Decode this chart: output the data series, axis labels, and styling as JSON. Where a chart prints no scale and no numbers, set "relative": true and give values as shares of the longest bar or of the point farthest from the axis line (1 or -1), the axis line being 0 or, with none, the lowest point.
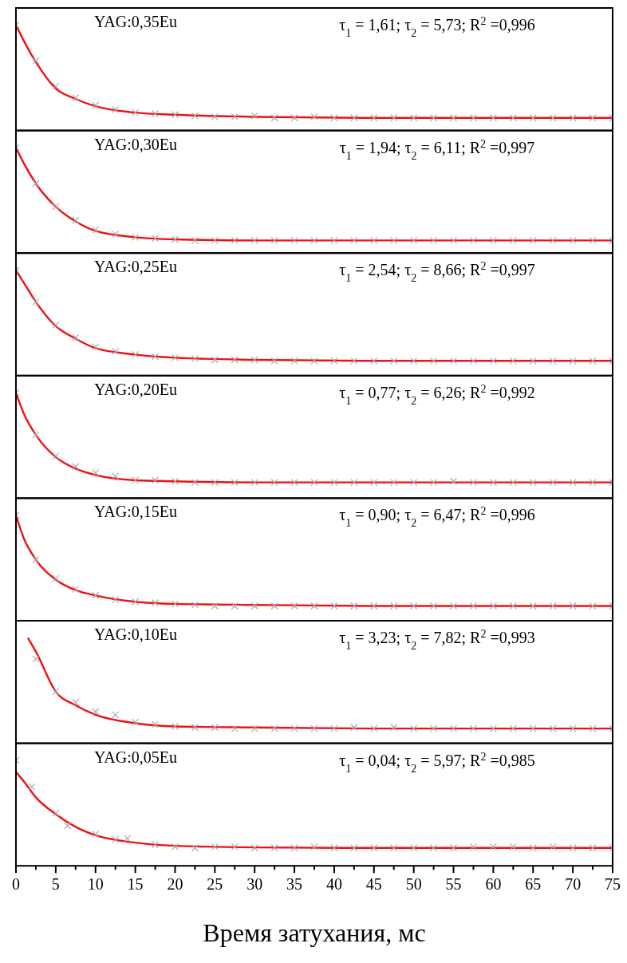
{
  "chart_data": [
    {
      "type": "line",
      "title": "YAG:0,35Eu",
      "annotations": [
        "τ$_{1}$ = 1,61; τ$_{2}$ = 5,73; R$^{2}$ =0,996"
      ],
      "relative": true,
      "xlim": [
        0,
        75
      ],
      "tick_labels": false,
      "series": [
        {
          "type": "scatter",
          "marker": "cross",
          "color": "#a8a8b8",
          "x": [
            0,
            2.5,
            5,
            7.5,
            10,
            12.5,
            15,
            17.5,
            20,
            22.5,
            25,
            27.5,
            30,
            32.5,
            35,
            37.5,
            40,
            42.5,
            45,
            47.5,
            50,
            52.5,
            55,
            57.5,
            60,
            62.5,
            65,
            67.5,
            70,
            72.5,
            75
          ],
          "values": [
            1,
            0.66,
            0.42,
            0.31,
            0.24,
            0.2,
            0.17,
            0.16,
            0.15,
            0.14,
            0.13,
            0.13,
            0.14,
            0.12,
            0.12,
            0.13,
            0.12,
            0.12,
            0.12,
            0.12,
            0.12,
            0.12,
            0.12,
            0.12,
            0.12,
            0.12,
            0.12,
            0.12,
            0.12,
            0.12,
            0.12
          ]
        },
        {
          "type": "line",
          "color": "#ee1111",
          "x": [
            0,
            1,
            2.5,
            5,
            7.5,
            10,
            15,
            20,
            30,
            45,
            75
          ],
          "values": [
            1,
            0.85,
            0.65,
            0.4,
            0.3,
            0.23,
            0.17,
            0.15,
            0.13,
            0.12,
            0.12
          ]
        }
      ]
    },
    {
      "type": "line",
      "title": "YAG:0,30Eu",
      "annotations": [
        "τ$_{1}$ = 1,94; τ$_{2}$ = 6,11; R$^{2}$ =0,997"
      ],
      "relative": true,
      "xlim": [
        0,
        75
      ],
      "tick_labels": false,
      "series": [
        {
          "type": "scatter",
          "marker": "cross",
          "color": "#a8a8b8",
          "x": [
            0,
            2.5,
            5,
            7.5,
            10,
            12.5,
            15,
            17.5,
            20,
            22.5,
            25,
            27.5,
            30,
            32.5,
            35,
            37.5,
            40,
            42.5,
            45,
            47.5,
            50,
            52.5,
            55,
            57.5,
            60,
            62.5,
            65,
            67.5,
            70,
            72.5,
            75
          ],
          "values": [
            1,
            0.66,
            0.44,
            0.31,
            0.22,
            0.18,
            0.15,
            0.14,
            0.13,
            0.12,
            0.12,
            0.12,
            0.12,
            0.12,
            0.12,
            0.12,
            0.12,
            0.12,
            0.12,
            0.12,
            0.12,
            0.12,
            0.12,
            0.12,
            0.12,
            0.12,
            0.12,
            0.12,
            0.12,
            0.12,
            0.12
          ]
        },
        {
          "type": "line",
          "color": "#ee1111",
          "x": [
            0,
            1,
            2.5,
            5,
            7.5,
            10,
            15,
            20,
            30,
            45,
            75
          ],
          "values": [
            1,
            0.85,
            0.66,
            0.44,
            0.3,
            0.21,
            0.15,
            0.13,
            0.12,
            0.12,
            0.12
          ]
        }
      ]
    },
    {
      "type": "line",
      "title": "YAG:0,25Eu",
      "annotations": [
        "τ$_{1}$ = 2,54; τ$_{2}$ = 8,66; R$^{2}$ =0,997"
      ],
      "relative": true,
      "xlim": [
        0,
        75
      ],
      "tick_labels": false,
      "series": [
        {
          "type": "scatter",
          "marker": "cross",
          "color": "#a8a8b8",
          "x": [
            0,
            2.5,
            5,
            7.5,
            10,
            12.5,
            15,
            17.5,
            20,
            22.5,
            25,
            27.5,
            30,
            32.5,
            35,
            37.5,
            40,
            42.5,
            45,
            47.5,
            50,
            52.5,
            55,
            57.5,
            60,
            62.5,
            65,
            67.5,
            70,
            72.5,
            75
          ],
          "values": [
            1,
            0.7,
            0.48,
            0.36,
            0.27,
            0.23,
            0.2,
            0.18,
            0.17,
            0.16,
            0.15,
            0.15,
            0.15,
            0.14,
            0.14,
            0.14,
            0.14,
            0.14,
            0.14,
            0.14,
            0.14,
            0.14,
            0.14,
            0.14,
            0.14,
            0.14,
            0.14,
            0.14,
            0.14,
            0.14,
            0.14
          ]
        },
        {
          "type": "line",
          "color": "#ee1111",
          "x": [
            0,
            1,
            2.5,
            5,
            7.5,
            10,
            15,
            20,
            30,
            45,
            75
          ],
          "values": [
            1,
            0.88,
            0.7,
            0.47,
            0.35,
            0.26,
            0.2,
            0.17,
            0.15,
            0.14,
            0.14
          ]
        }
      ]
    },
    {
      "type": "line",
      "title": "YAG:0,20Eu",
      "annotations": [
        "τ$_{1}$ = 0,77; τ$_{2}$ = 6,26; R$^{2}$ =0,992"
      ],
      "relative": true,
      "xlim": [
        0,
        75
      ],
      "tick_labels": false,
      "series": [
        {
          "type": "scatter",
          "marker": "cross",
          "color": "#a8a8b8",
          "x": [
            0,
            2.5,
            5,
            7.5,
            10,
            12.5,
            15,
            17.5,
            20,
            22.5,
            25,
            27.5,
            30,
            32.5,
            35,
            37.5,
            40,
            42.5,
            45,
            47.5,
            50,
            52.5,
            55,
            57.5,
            60,
            62.5,
            65,
            67.5,
            70,
            72.5,
            75
          ],
          "values": [
            1,
            0.6,
            0.4,
            0.3,
            0.24,
            0.21,
            0.17,
            0.17,
            0.16,
            0.15,
            0.15,
            0.15,
            0.15,
            0.15,
            0.15,
            0.15,
            0.15,
            0.15,
            0.15,
            0.15,
            0.15,
            0.15,
            0.16,
            0.15,
            0.15,
            0.15,
            0.15,
            0.15,
            0.15,
            0.15,
            0.15
          ]
        },
        {
          "type": "line",
          "color": "#ee1111",
          "x": [
            0,
            1,
            2.5,
            5,
            7.5,
            10,
            15,
            20,
            30,
            45,
            75
          ],
          "values": [
            1,
            0.8,
            0.6,
            0.39,
            0.28,
            0.22,
            0.17,
            0.16,
            0.15,
            0.15,
            0.15
          ]
        }
      ]
    },
    {
      "type": "line",
      "title": "YAG:0,15Eu",
      "annotations": [
        "τ$_{1}$ = 0,90; τ$_{2}$ = 6,47; R$^{2}$ =0,996"
      ],
      "relative": true,
      "xlim": [
        0,
        75
      ],
      "tick_labels": false,
      "series": [
        {
          "type": "scatter",
          "marker": "cross",
          "color": "#a8a8b8",
          "x": [
            0,
            2.5,
            5,
            7.5,
            10,
            12.5,
            15,
            17.5,
            20,
            22.5,
            25,
            27.5,
            30,
            32.5,
            35,
            37.5,
            40,
            42.5,
            45,
            47.5,
            50,
            52.5,
            55,
            57.5,
            60,
            62.5,
            65,
            67.5,
            70,
            72.5,
            75
          ],
          "values": [
            1,
            0.58,
            0.4,
            0.3,
            0.24,
            0.2,
            0.18,
            0.17,
            0.16,
            0.15,
            0.14,
            0.14,
            0.14,
            0.14,
            0.14,
            0.14,
            0.14,
            0.14,
            0.14,
            0.14,
            0.14,
            0.14,
            0.14,
            0.14,
            0.14,
            0.14,
            0.14,
            0.14,
            0.14,
            0.14,
            0.14
          ]
        },
        {
          "type": "line",
          "color": "#ee1111",
          "x": [
            0,
            1,
            2.5,
            5,
            7.5,
            10,
            15,
            20,
            30,
            45,
            75
          ],
          "values": [
            1,
            0.78,
            0.58,
            0.39,
            0.29,
            0.24,
            0.18,
            0.16,
            0.15,
            0.14,
            0.14
          ]
        }
      ]
    },
    {
      "type": "line",
      "title": "YAG:0,10Eu",
      "annotations": [
        "τ$_{1}$ = 3,23; τ$_{2}$ = 7,82; R$^{2}$ =0,993"
      ],
      "relative": true,
      "xlim": [
        0,
        75
      ],
      "tick_labels": false,
      "series": [
        {
          "type": "scatter",
          "marker": "cross",
          "color": "#a8a8b8",
          "x": [
            2.5,
            5,
            7.5,
            10,
            12.5,
            15,
            17.5,
            20,
            22.5,
            25,
            27.5,
            30,
            32.5,
            35,
            37.5,
            40,
            42.5,
            45,
            47.5,
            50,
            52.5,
            55,
            57.5,
            60,
            62.5,
            65,
            67.5,
            70,
            72.5,
            75
          ],
          "values": [
            0.8,
            0.49,
            0.39,
            0.3,
            0.27,
            0.2,
            0.18,
            0.16,
            0.15,
            0.15,
            0.14,
            0.14,
            0.14,
            0.14,
            0.14,
            0.14,
            0.15,
            0.14,
            0.15,
            0.14,
            0.14,
            0.14,
            0.14,
            0.14,
            0.14,
            0.14,
            0.14,
            0.14,
            0.14,
            0.14
          ]
        },
        {
          "type": "line",
          "color": "#ee1111",
          "x": [
            1.5,
            2.5,
            5,
            7.5,
            10,
            15,
            20,
            30,
            45,
            75
          ],
          "values": [
            1,
            0.87,
            0.49,
            0.36,
            0.27,
            0.19,
            0.16,
            0.15,
            0.14,
            0.14
          ]
        }
      ]
    },
    {
      "type": "line",
      "title": "YAG:0,05Eu",
      "annotations": [
        "τ$_{1}$ = 0,04; τ$_{2}$ = 5,97; R$^{2}$ =0,985"
      ],
      "xlabel": "Время затухания, мс",
      "relative": true,
      "xlim": [
        0,
        75
      ],
      "tick_labels": "x",
      "xticks": [
        0,
        {
          "value": 2.5,
          "label": null
        },
        5,
        {
          "value": 7.5,
          "label": null
        },
        10,
        {
          "value": 12.5,
          "label": null
        },
        15,
        {
          "value": 17.5,
          "label": null
        },
        20,
        {
          "value": 22.5,
          "label": null
        },
        25,
        {
          "value": 27.5,
          "label": null
        },
        30,
        {
          "value": 32.5,
          "label": null
        },
        35,
        {
          "value": 37.5,
          "label": null
        },
        40,
        {
          "value": 42.5,
          "label": null
        },
        45,
        {
          "value": 47.5,
          "label": null
        },
        50,
        {
          "value": 52.5,
          "label": null
        },
        55,
        {
          "value": 57.5,
          "label": null
        },
        60,
        {
          "value": 62.5,
          "label": null
        },
        65,
        {
          "value": 67.5,
          "label": null
        },
        70,
        {
          "value": 72.5,
          "label": null
        },
        75
      ],
      "series": [
        {
          "type": "scatter",
          "marker": "cross",
          "color": "#a8a8b8",
          "x": [
            0,
            2,
            5,
            6.5,
            10,
            12.5,
            14,
            17.5,
            20,
            22.5,
            25,
            27.5,
            30,
            32.5,
            35,
            37.5,
            40,
            42.5,
            45,
            47.5,
            50,
            52.5,
            55,
            57.5,
            60,
            62.5,
            65,
            67.5,
            70,
            72.5,
            75
          ],
          "values": [
            1,
            0.75,
            0.5,
            0.38,
            0.3,
            0.25,
            0.26,
            0.2,
            0.18,
            0.17,
            0.18,
            0.18,
            0.17,
            0.17,
            0.17,
            0.18,
            0.17,
            0.17,
            0.17,
            0.17,
            0.17,
            0.17,
            0.17,
            0.18,
            0.18,
            0.18,
            0.17,
            0.18,
            0.17,
            0.17,
            0.17
          ]
        },
        {
          "type": "line",
          "color": "#ee1111",
          "x": [
            0,
            1,
            2.5,
            5,
            7.5,
            10,
            15,
            20,
            30,
            45,
            75
          ],
          "values": [
            0.89,
            0.8,
            0.65,
            0.49,
            0.37,
            0.29,
            0.22,
            0.19,
            0.175,
            0.17,
            0.17
          ]
        }
      ]
    }
  ]
}
